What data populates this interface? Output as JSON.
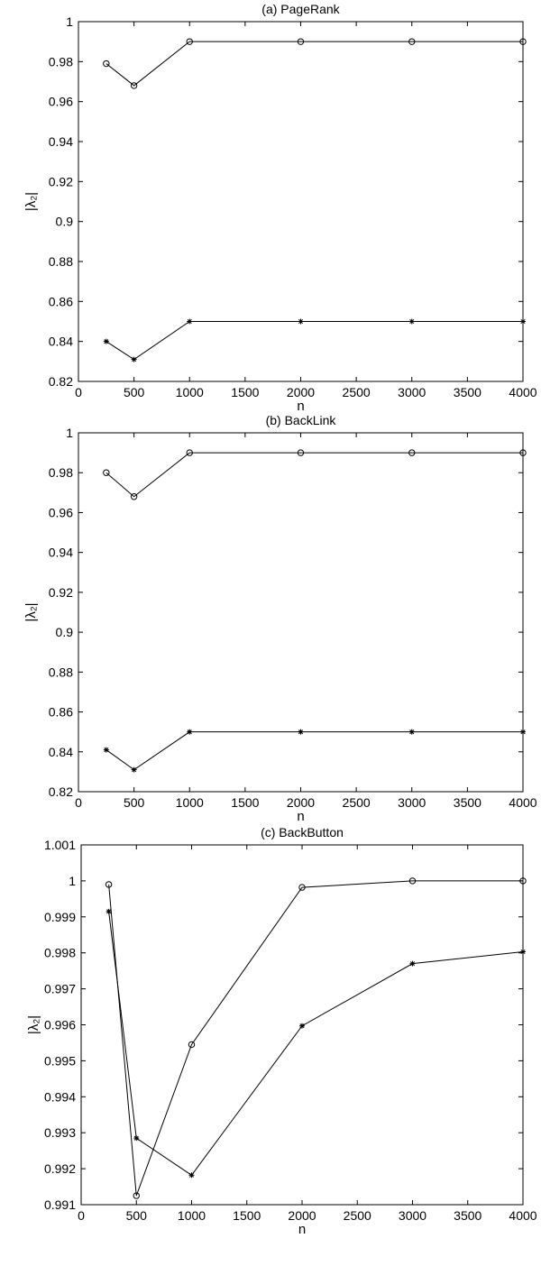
{
  "chart_data": [
    {
      "type": "line",
      "title": "(a) PageRank",
      "xlabel": "n",
      "ylabel": "|λ₂|",
      "xlim": [
        0,
        4000
      ],
      "ylim": [
        0.82,
        1.0
      ],
      "x_ticks": [
        0,
        500,
        1000,
        1500,
        2000,
        2500,
        3000,
        3500,
        4000
      ],
      "y_ticks": [
        0.82,
        0.84,
        0.86,
        0.88,
        0.9,
        0.92,
        0.94,
        0.96,
        0.98,
        1
      ],
      "y_tick_labels": [
        "0.82",
        "0.84",
        "0.86",
        "0.88",
        "0.9",
        "0.92",
        "0.94",
        "0.96",
        "0.98",
        "1"
      ],
      "grid": false,
      "series": [
        {
          "marker": "circle",
          "x": [
            250,
            500,
            1000,
            2000,
            3000,
            4000
          ],
          "y": [
            0.979,
            0.968,
            0.99,
            0.99,
            0.99,
            0.99
          ]
        },
        {
          "marker": "star",
          "x": [
            250,
            500,
            1000,
            2000,
            3000,
            4000
          ],
          "y": [
            0.84,
            0.831,
            0.85,
            0.85,
            0.85,
            0.85
          ]
        }
      ]
    },
    {
      "type": "line",
      "title": "(b) BackLink",
      "xlabel": "n",
      "ylabel": "|λ₂|",
      "xlim": [
        0,
        4000
      ],
      "ylim": [
        0.82,
        1.0
      ],
      "x_ticks": [
        0,
        500,
        1000,
        1500,
        2000,
        2500,
        3000,
        3500,
        4000
      ],
      "y_ticks": [
        0.82,
        0.84,
        0.86,
        0.88,
        0.9,
        0.92,
        0.94,
        0.96,
        0.98,
        1
      ],
      "y_tick_labels": [
        "0.82",
        "0.84",
        "0.86",
        "0.88",
        "0.9",
        "0.92",
        "0.94",
        "0.96",
        "0.98",
        "1"
      ],
      "grid": false,
      "series": [
        {
          "marker": "circle",
          "x": [
            250,
            500,
            1000,
            2000,
            3000,
            4000
          ],
          "y": [
            0.98,
            0.968,
            0.99,
            0.99,
            0.99,
            0.99
          ]
        },
        {
          "marker": "star",
          "x": [
            250,
            500,
            1000,
            2000,
            3000,
            4000
          ],
          "y": [
            0.841,
            0.831,
            0.85,
            0.85,
            0.85,
            0.85
          ]
        }
      ]
    },
    {
      "type": "line",
      "title": "(c) BackButton",
      "xlabel": "n",
      "ylabel": "|λ₂|",
      "xlim": [
        0,
        4000
      ],
      "ylim": [
        0.991,
        1.001
      ],
      "x_ticks": [
        0,
        500,
        1000,
        1500,
        2000,
        2500,
        3000,
        3500,
        4000
      ],
      "y_ticks": [
        0.991,
        0.992,
        0.993,
        0.994,
        0.995,
        0.996,
        0.997,
        0.998,
        0.999,
        1,
        1.001
      ],
      "y_tick_labels": [
        "0.991",
        "0.992",
        "0.993",
        "0.994",
        "0.995",
        "0.996",
        "0.997",
        "0.998",
        "0.999",
        "1",
        "1.001"
      ],
      "grid": false,
      "series": [
        {
          "marker": "circle",
          "x": [
            250,
            500,
            1000,
            2000,
            3000,
            4000
          ],
          "y": [
            0.9999,
            0.99125,
            0.99545,
            0.99982,
            1.0,
            1.0
          ]
        },
        {
          "marker": "star",
          "x": [
            250,
            500,
            1000,
            2000,
            3000,
            4000
          ],
          "y": [
            0.99915,
            0.99285,
            0.99182,
            0.99597,
            0.9977,
            0.99803
          ]
        }
      ]
    }
  ]
}
